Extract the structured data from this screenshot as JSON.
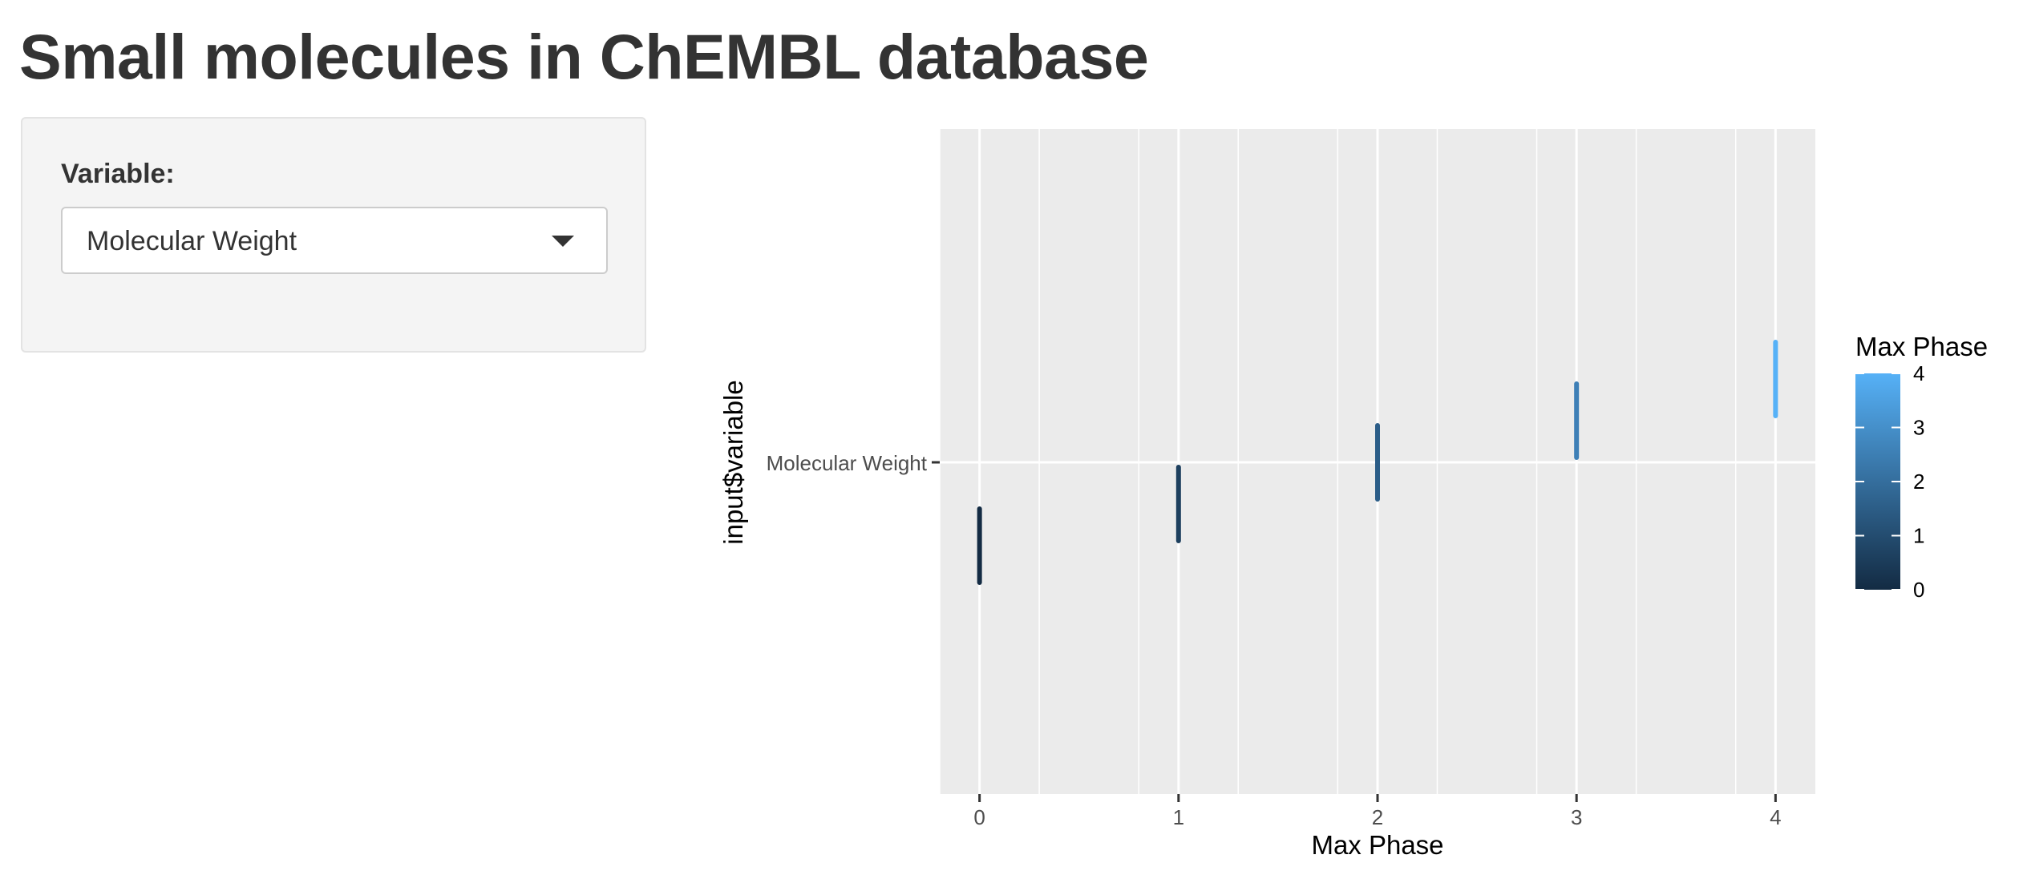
{
  "page": {
    "title": "Small molecules in ChEMBL database"
  },
  "sidebar": {
    "variable_label": "Variable:",
    "select": {
      "selected": "Molecular Weight"
    }
  },
  "chart_data": {
    "type": "scatter",
    "xlabel": "Max Phase",
    "ylabel": "input$variable",
    "x_ticks": [
      "0",
      "1",
      "2",
      "3",
      "4"
    ],
    "y_categories": [
      "Molecular Weight"
    ],
    "xlim": [
      -0.2,
      4.2
    ],
    "grid": true,
    "points": [
      {
        "x": 0,
        "y_offset": -1.0,
        "color": "#132B43"
      },
      {
        "x": 1,
        "y_offset": -0.5,
        "color": "#1D3F5E"
      },
      {
        "x": 2,
        "y_offset": 0.0,
        "color": "#2B5D88"
      },
      {
        "x": 3,
        "y_offset": 0.5,
        "color": "#3D7FB6"
      },
      {
        "x": 4,
        "y_offset": 1.0,
        "color": "#56B1F7"
      }
    ],
    "legend": {
      "title": "Max Phase",
      "position": "right",
      "labels": [
        "4",
        "3",
        "2",
        "1",
        "0"
      ],
      "gradient_low": "#132B43",
      "gradient_high": "#56B1F7"
    }
  }
}
